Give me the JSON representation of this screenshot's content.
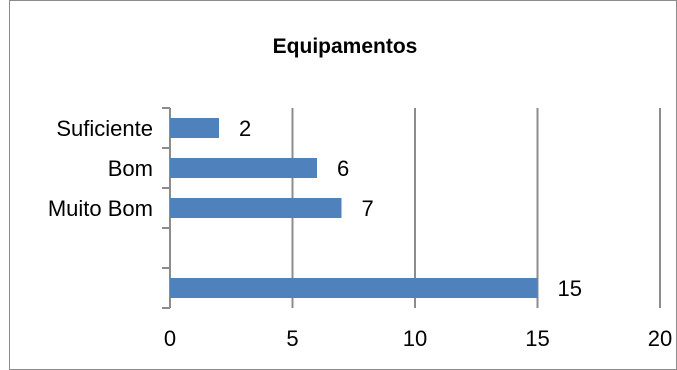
{
  "chart_data": {
    "type": "bar",
    "orientation": "horizontal",
    "title": "Equipamentos",
    "xlabel": "",
    "ylabel": "",
    "categories": [
      "Suficiente",
      "Bom",
      "Muito Bom",
      "",
      ""
    ],
    "values": [
      2,
      6,
      7,
      null,
      15
    ],
    "data_labels": [
      "2",
      "6",
      "7",
      "",
      "15"
    ],
    "xlim": [
      0,
      20
    ],
    "xticks": [
      0,
      5,
      10,
      15,
      20
    ],
    "xtick_labels": [
      "0",
      "5",
      "10",
      "15",
      "20"
    ],
    "grid": "vertical",
    "legend": "none",
    "bar_color": "#4f81bd",
    "grid_color": "#8c8c8c"
  }
}
